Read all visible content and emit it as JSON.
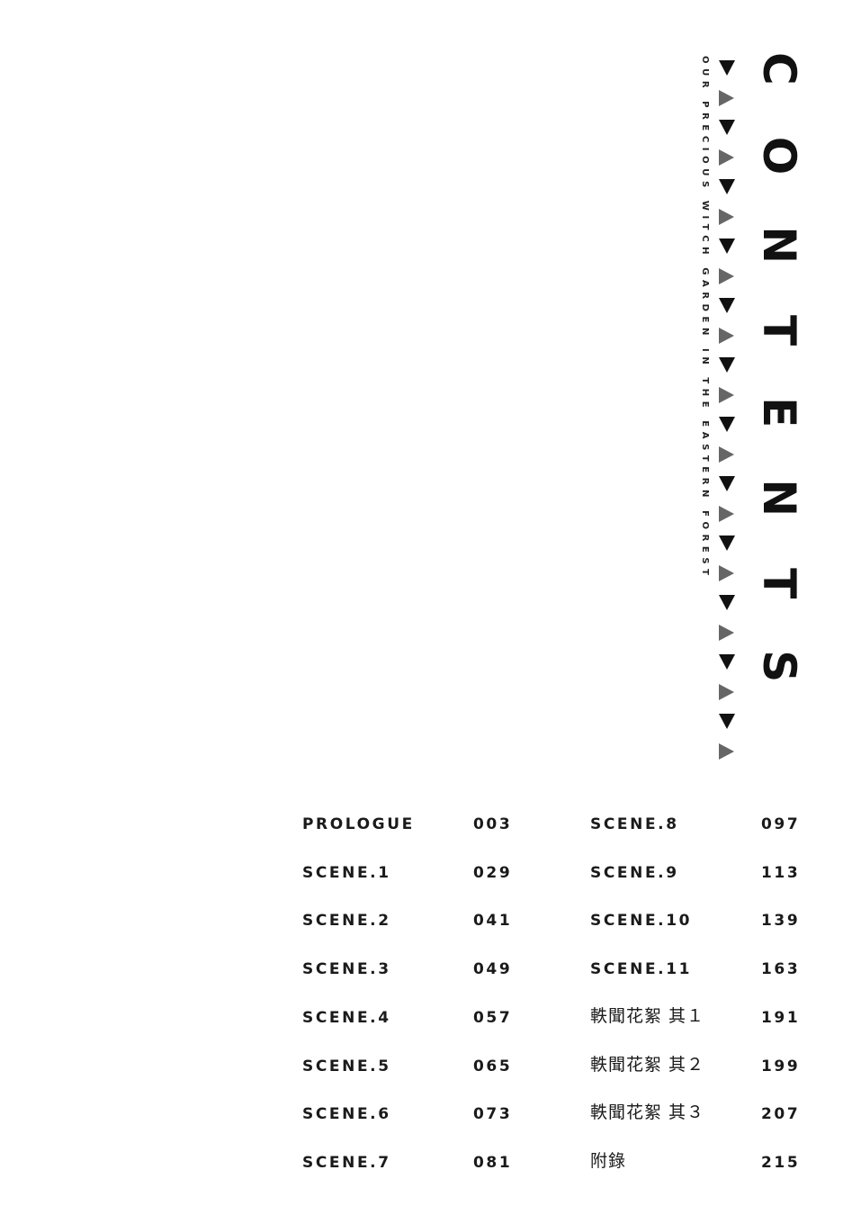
{
  "title": "CONTENTS",
  "subtitle": "OUR PRECIOUS WITCH GARDEN IN THE EASTERN FOREST",
  "colors": {
    "text": "#111111",
    "triangle_dark": "#111111",
    "triangle_gray": "#666666"
  },
  "toc_left": [
    {
      "label": "PROLOGUE",
      "page": "003"
    },
    {
      "label": "SCENE.1",
      "page": "029"
    },
    {
      "label": "SCENE.2",
      "page": "041"
    },
    {
      "label": "SCENE.3",
      "page": "049"
    },
    {
      "label": "SCENE.4",
      "page": "057"
    },
    {
      "label": "SCENE.5",
      "page": "065"
    },
    {
      "label": "SCENE.6",
      "page": "073"
    },
    {
      "label": "SCENE.7",
      "page": "081"
    }
  ],
  "toc_right": [
    {
      "label": "SCENE.8",
      "page": "097"
    },
    {
      "label": "SCENE.9",
      "page": "113"
    },
    {
      "label": "SCENE.10",
      "page": "139"
    },
    {
      "label": "SCENE.11",
      "page": "163"
    },
    {
      "label": "軼聞花絮 其１",
      "page": "191"
    },
    {
      "label": "軼聞花絮 其２",
      "page": "199"
    },
    {
      "label": "軼聞花絮 其３",
      "page": "207"
    },
    {
      "label": "附錄",
      "page": "215"
    }
  ]
}
